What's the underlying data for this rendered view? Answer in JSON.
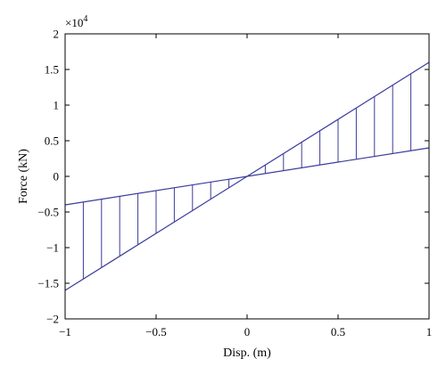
{
  "chart_data": {
    "type": "line",
    "xlabel": "Disp. (m)",
    "ylabel": "Force (kN)",
    "y_multiplier_label": "×10",
    "y_multiplier_exp": "4",
    "xlim": [
      -1,
      1
    ],
    "ylim": [
      -2,
      2
    ],
    "x_ticks": [
      -1,
      -0.5,
      0,
      0.5,
      1
    ],
    "x_tick_labels": [
      "−1",
      "−0.5",
      "0",
      "0.5",
      "1"
    ],
    "y_ticks": [
      -2,
      -1.5,
      -1,
      -0.5,
      0,
      0.5,
      1,
      1.5,
      2
    ],
    "y_tick_labels": [
      "−2",
      "−1.5",
      "−1",
      "−0.5",
      "0",
      "0.5",
      "1",
      "1.5",
      "2"
    ],
    "grid": false,
    "line_color": "#3b3b9b",
    "series": [
      {
        "x": [
          -1,
          1
        ],
        "y": [
          -1.6,
          1.6
        ]
      },
      {
        "x": [
          -1,
          1
        ],
        "y": [
          -0.4,
          0.4
        ]
      }
    ],
    "hatch_x": [
      -1,
      -0.9,
      -0.8,
      -0.7,
      -0.6,
      -0.5,
      -0.4,
      -0.3,
      -0.2,
      -0.1,
      0,
      0.1,
      0.2,
      0.3,
      0.4,
      0.5,
      0.6,
      0.7,
      0.8,
      0.9,
      1
    ]
  }
}
